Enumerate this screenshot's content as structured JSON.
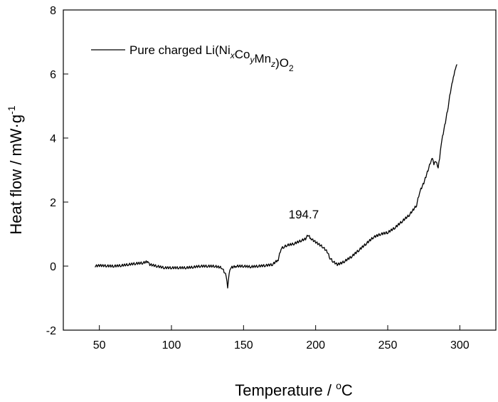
{
  "chart_data": {
    "type": "line",
    "title": "",
    "xlabel": "Temperature / °C",
    "xlabel_parts": {
      "main": "Temperature / ",
      "sup": "o",
      "after": "C"
    },
    "ylabel": "Heat flow / mW·g⁻¹",
    "ylabel_parts": {
      "main": "Heat flow / mW·g",
      "sup": "-1"
    },
    "xlim": [
      25,
      325
    ],
    "ylim": [
      -2,
      8
    ],
    "xticks": [
      50,
      100,
      150,
      200,
      250,
      300
    ],
    "yticks": [
      -2,
      0,
      2,
      4,
      6,
      8
    ],
    "grid": false,
    "legend": {
      "position": "top-left",
      "label": "Pure charged Li(NixCoyMnz)O2",
      "parts": [
        {
          "t": "Pure charged Li(Ni",
          "s": ""
        },
        {
          "t": "x",
          "s": "sub-italic"
        },
        {
          "t": "Co",
          "s": ""
        },
        {
          "t": "y",
          "s": "sub-italic"
        },
        {
          "t": "Mn",
          "s": ""
        },
        {
          "t": "z",
          "s": "sub-italic"
        },
        {
          "t": ")O",
          "s": ""
        },
        {
          "t": "2",
          "s": "sub"
        }
      ]
    },
    "annotations": [
      {
        "text": "194.7",
        "x": 194.7,
        "y": 1.0
      }
    ],
    "series": [
      {
        "name": "Pure charged Li(NixCoyMnz)O2",
        "color": "#000000",
        "x": [
          47,
          50,
          55,
          60,
          65,
          70,
          75,
          80,
          84,
          85,
          88,
          90,
          95,
          100,
          105,
          110,
          115,
          120,
          125,
          130,
          135,
          138,
          139,
          140,
          141,
          145,
          150,
          155,
          160,
          165,
          170,
          174,
          176,
          178,
          180,
          185,
          190,
          193,
          194.7,
          197,
          200,
          205,
          208,
          210,
          212,
          215,
          218,
          220,
          225,
          230,
          235,
          240,
          245,
          250,
          255,
          260,
          265,
          270,
          272,
          275,
          278,
          280,
          281,
          282,
          283,
          285,
          286,
          287,
          290,
          292,
          294,
          295,
          296,
          297,
          298
        ],
        "y": [
          0.0,
          0.02,
          0.01,
          0.0,
          0.02,
          0.05,
          0.08,
          0.1,
          0.15,
          0.05,
          0.02,
          0.0,
          -0.05,
          -0.05,
          -0.05,
          -0.05,
          -0.03,
          0.0,
          0.0,
          0.0,
          -0.05,
          -0.3,
          -0.65,
          -0.2,
          -0.05,
          0.0,
          0.0,
          -0.02,
          0.0,
          0.02,
          0.05,
          0.2,
          0.55,
          0.6,
          0.65,
          0.7,
          0.8,
          0.85,
          0.97,
          0.85,
          0.75,
          0.6,
          0.45,
          0.25,
          0.15,
          0.05,
          0.1,
          0.15,
          0.3,
          0.5,
          0.7,
          0.9,
          1.0,
          1.05,
          1.2,
          1.4,
          1.6,
          1.9,
          2.3,
          2.6,
          3.0,
          3.3,
          3.4,
          3.2,
          3.3,
          3.1,
          3.4,
          3.8,
          4.5,
          5.0,
          5.6,
          5.8,
          6.0,
          6.2,
          6.3
        ]
      }
    ]
  }
}
